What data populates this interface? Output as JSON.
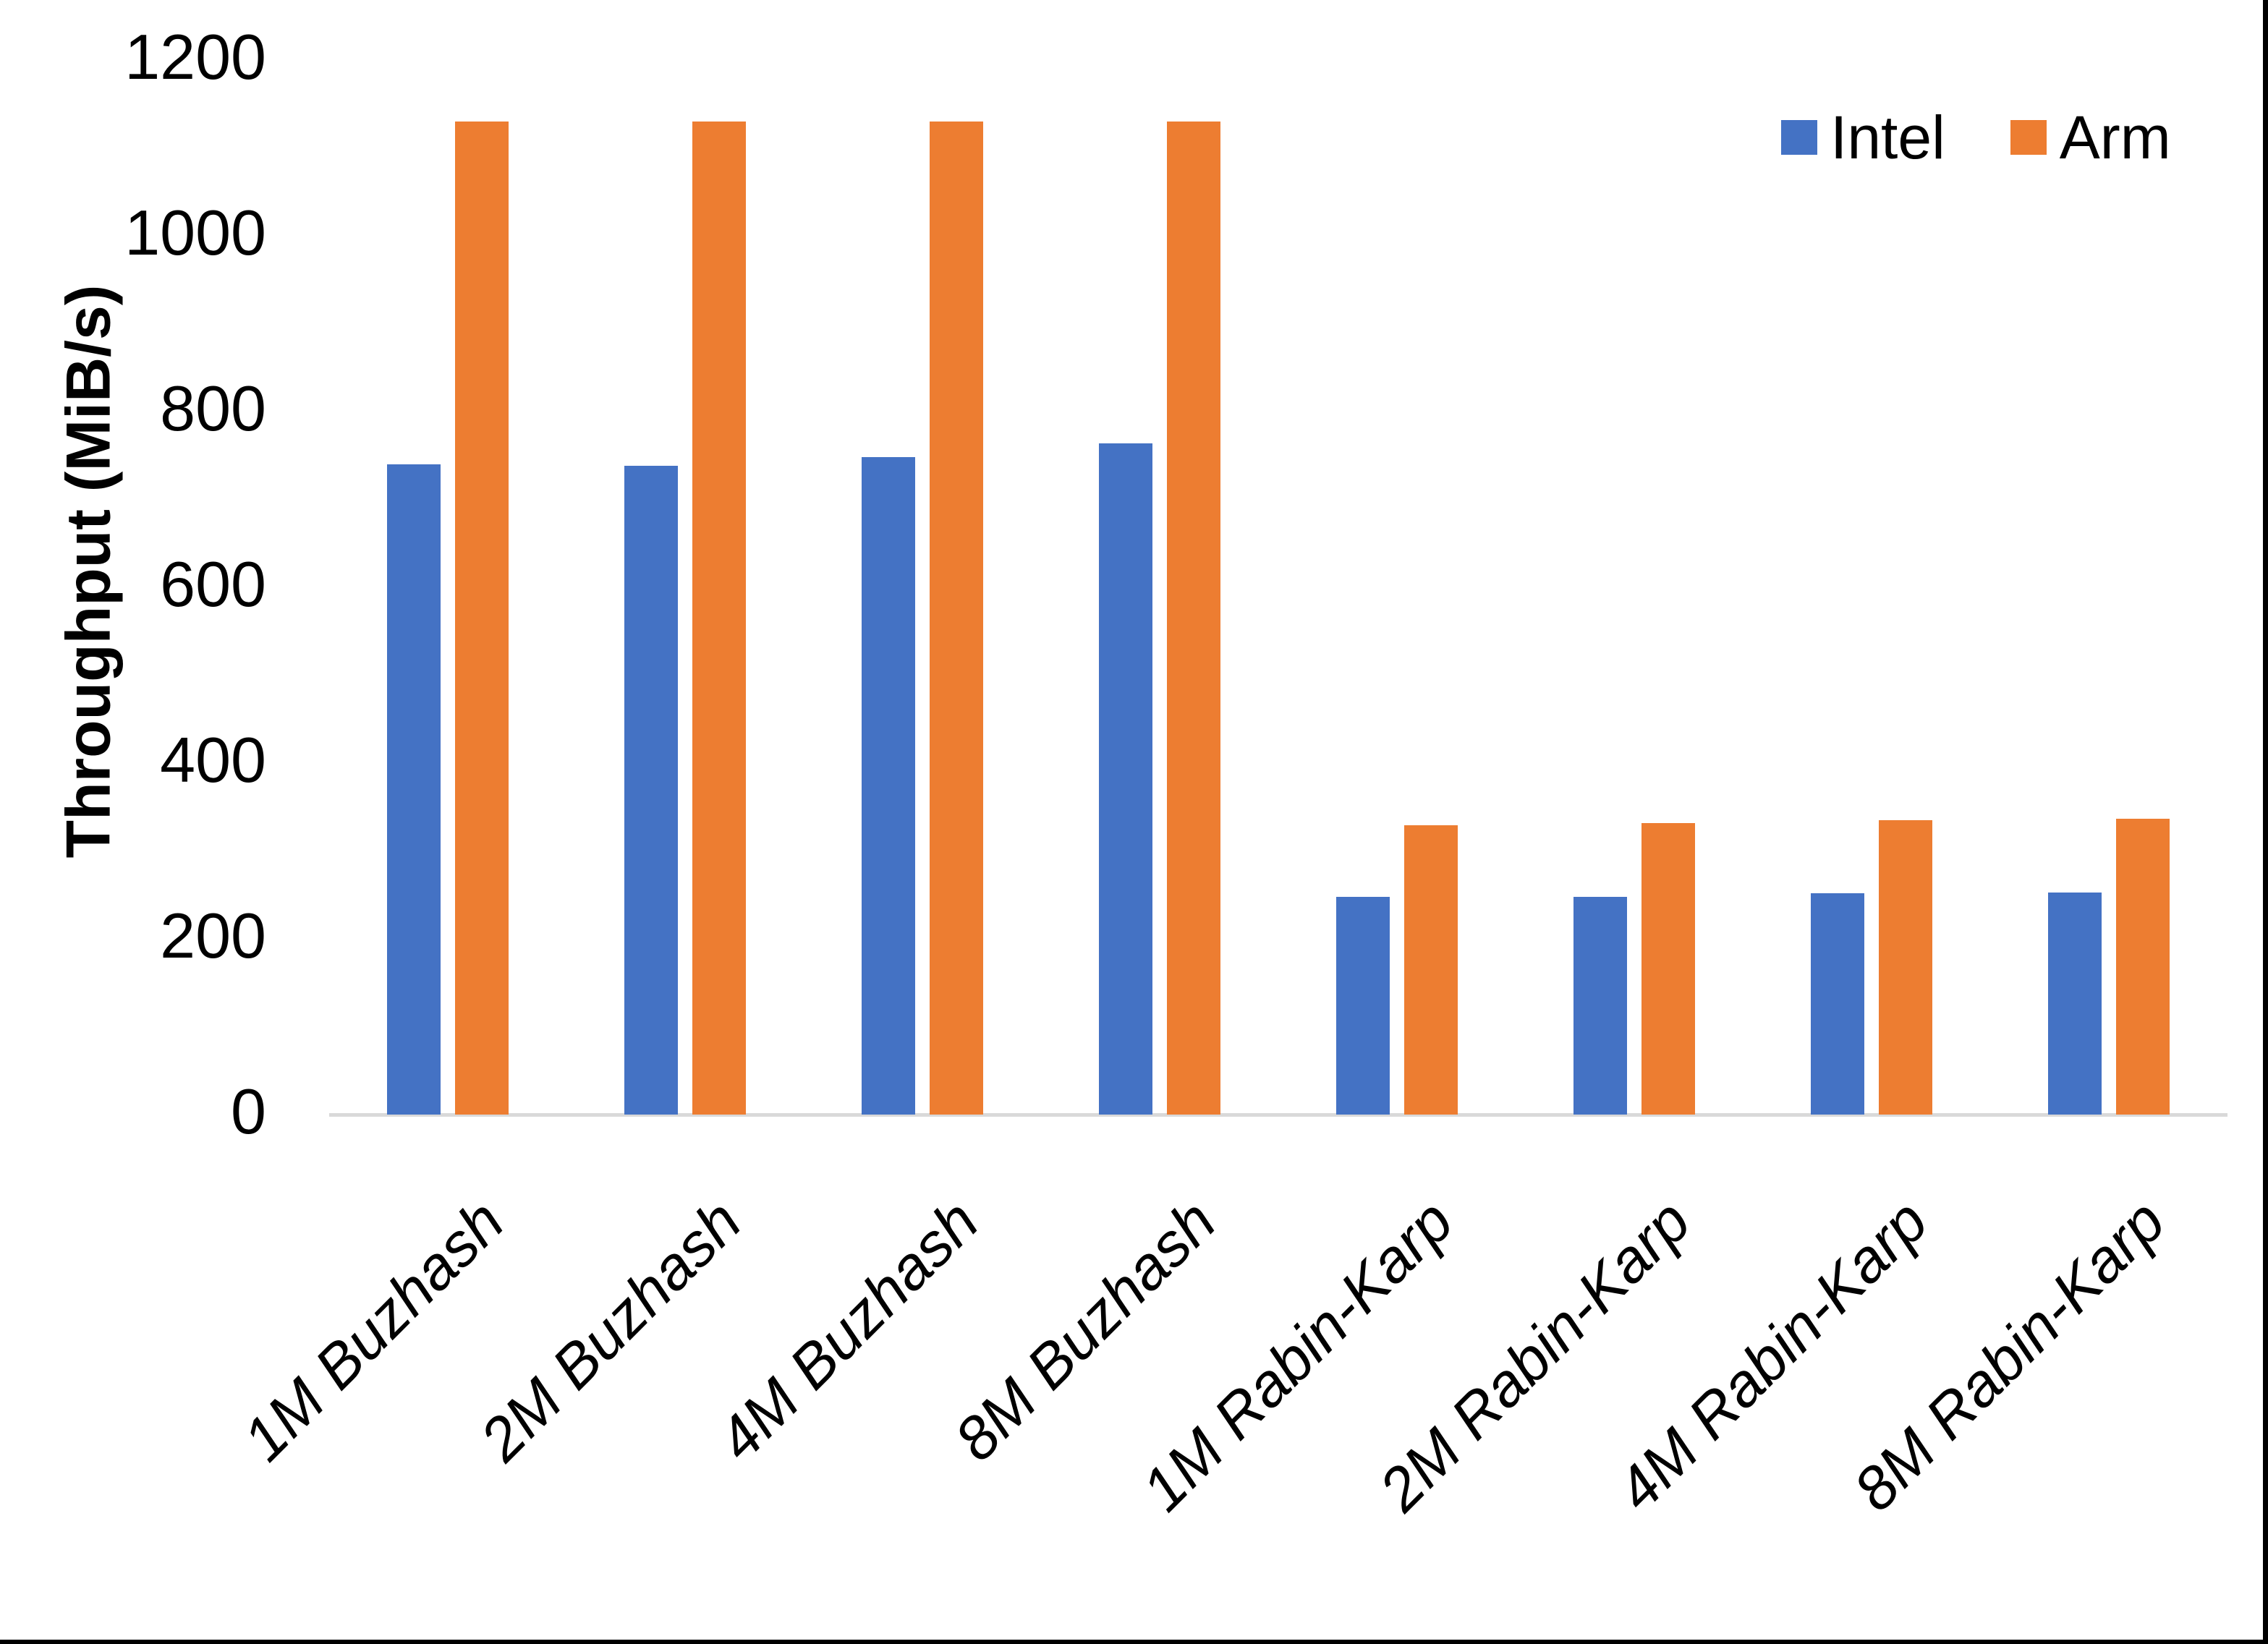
{
  "chart_data": {
    "type": "bar",
    "title": "",
    "xlabel": "",
    "ylabel": "Throughput (MiB/s)",
    "ylim": [
      0,
      1200
    ],
    "yticks": [
      0,
      200,
      400,
      600,
      800,
      1000,
      1200
    ],
    "grid": false,
    "legend_position": "top-right",
    "categories": [
      "1M Buzhash",
      "2M Buzhash",
      "4M Buzhash",
      "8M Buzhash",
      "1M Rabin-Karp",
      "2M Rabin-Karp",
      "4M Rabin-Karp",
      "8M Rabin-Karp"
    ],
    "series": [
      {
        "name": "Intel",
        "color": "#4472C4",
        "values": [
          740,
          738,
          748,
          764,
          248,
          248,
          252,
          253
        ]
      },
      {
        "name": "Arm",
        "color": "#ED7D31",
        "values": [
          1130,
          1130,
          1130,
          1130,
          329,
          332,
          335,
          337
        ]
      }
    ]
  },
  "style_colors": {
    "axis_baseline": "#D9D9D9",
    "text": "#000000",
    "border": "#000000"
  }
}
